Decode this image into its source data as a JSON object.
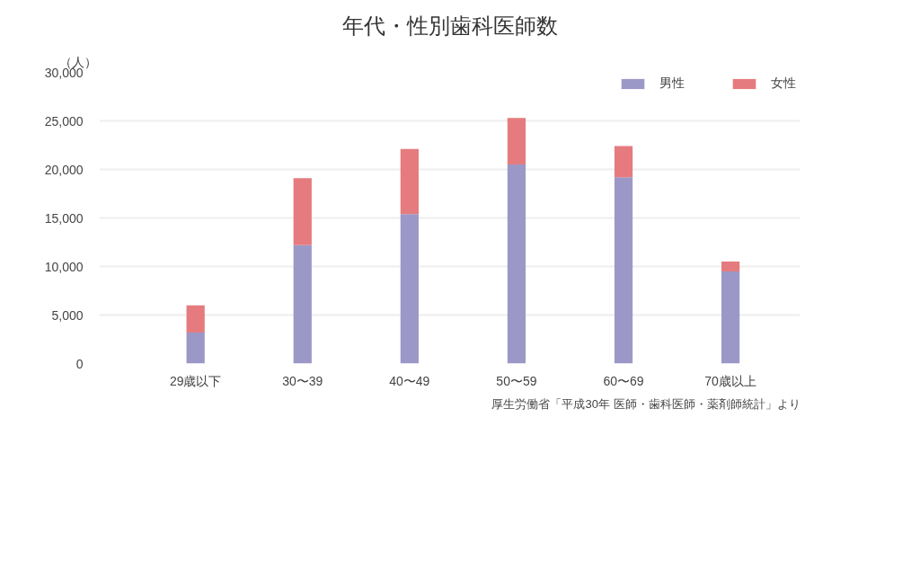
{
  "chart_data": {
    "type": "bar",
    "title": "年代・性別歯科医師数",
    "ylabel": "（人）",
    "categories": [
      "29歳以下",
      "30〜39",
      "40〜49",
      "50〜59",
      "60〜69",
      "70歳以上"
    ],
    "series": [
      {
        "name": "男性",
        "color": "#9b98c8",
        "values": [
          3200,
          12200,
          15400,
          20500,
          19200,
          9500
        ]
      },
      {
        "name": "女性",
        "color": "#e57b7e",
        "values": [
          2800,
          6900,
          6700,
          4800,
          3200,
          1000
        ]
      }
    ],
    "stacked": true,
    "ylim": [
      0,
      30000
    ],
    "yticks": [
      {
        "value": 0,
        "label": "0"
      },
      {
        "value": 5000,
        "label": "5,000"
      },
      {
        "value": 10000,
        "label": "10,000"
      },
      {
        "value": 15000,
        "label": "15,000"
      },
      {
        "value": 20000,
        "label": "20,000"
      },
      {
        "value": 25000,
        "label": "25,000"
      },
      {
        "value": 30000,
        "label": "30,000"
      }
    ],
    "grid": "y",
    "legend": "top right",
    "annotations": [
      "厚生労働省「平成30年 医師・歯科医師・薬剤師統計」より"
    ]
  }
}
